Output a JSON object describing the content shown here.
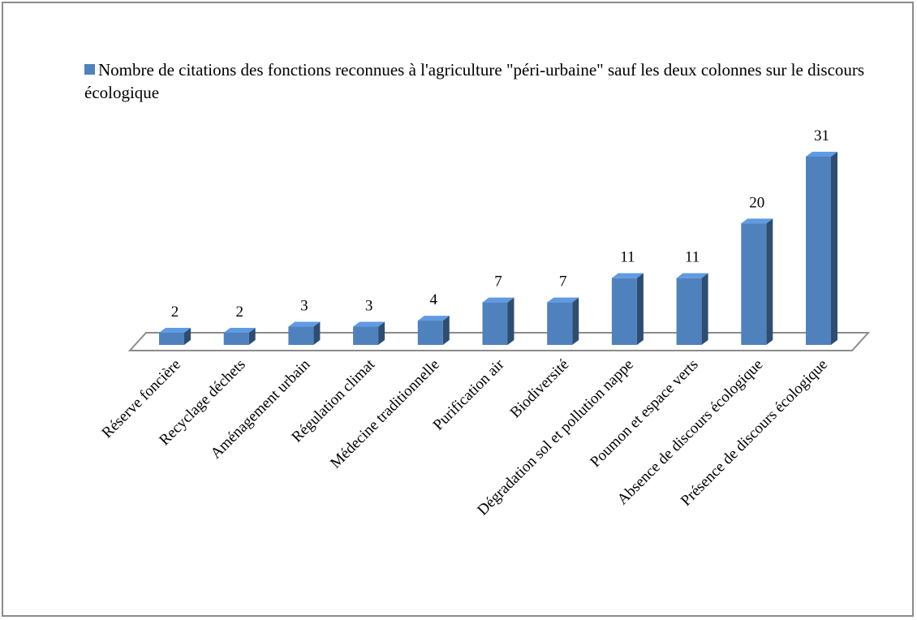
{
  "chart_data": {
    "type": "bar3d",
    "categories": [
      "Réserve foncière",
      "Recyclage déchets",
      "Aménagement urbain",
      "Régulation climat",
      "Médecine traditionnelle",
      "Purification air",
      "Biodiversité",
      "Dégradation sol et pollution nappe",
      "Poumon et espace verts",
      "Absence de discours écologique",
      "Présence de discours écologique"
    ],
    "series": [
      {
        "name": "Nombre de citations des fonctions reconnues à l'agriculture \"péri-urbaine\" sauf les deux colonnes sur le discours écologique",
        "color": "#4f81bd",
        "values": [
          2,
          2,
          3,
          3,
          4,
          7,
          7,
          11,
          11,
          20,
          31
        ]
      }
    ],
    "legend": "top"
  }
}
